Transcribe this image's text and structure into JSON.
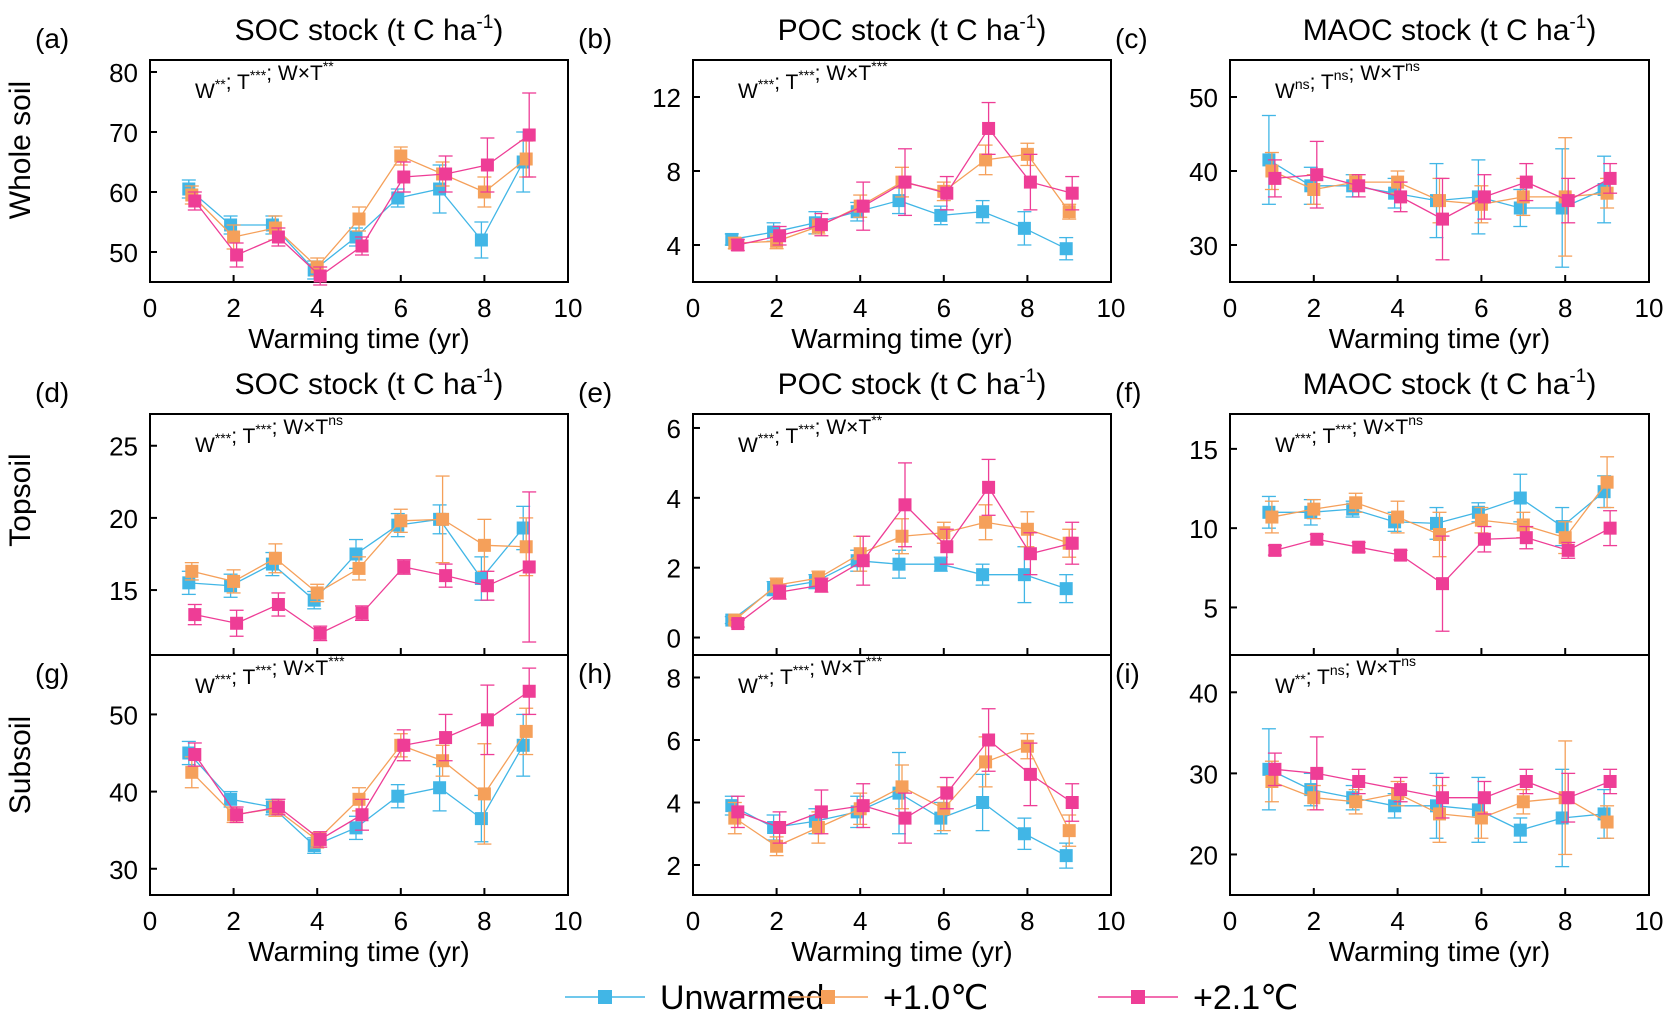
{
  "chart_data": {
    "type": "line",
    "xlabel": "Warming time (yr)",
    "xlim": [
      0,
      10
    ],
    "x_ticks": [
      0,
      2,
      4,
      6,
      8,
      10
    ],
    "x": [
      1,
      2,
      3,
      4,
      5,
      6,
      7,
      8,
      9
    ],
    "row_labels": [
      "Whole soil",
      "Topsoil",
      "Subsoil"
    ],
    "legend": {
      "placement": "bottom-center",
      "entries": [
        {
          "name": "Unwarmed",
          "color": "#41b6e6"
        },
        {
          "name": "+1.0℃",
          "color": "#f5a05a"
        },
        {
          "name": "+2.1℃",
          "color": "#ee3d96"
        }
      ]
    },
    "titles": {
      "soc": "SOC stock (t C ha",
      "poc": "POC stock (t C ha",
      "maoc": "MAOC stock (t C ha",
      "sup": "-1",
      "close": ")"
    },
    "panels": [
      {
        "tag": "(a)",
        "title_key": "soc",
        "ylim": [
          45,
          82
        ],
        "yticks": [
          50,
          60,
          70,
          80
        ],
        "stats": [
          [
            "W",
            "**"
          ],
          [
            "T",
            "***"
          ],
          [
            "W×T",
            "**"
          ]
        ],
        "series": [
          {
            "name": "Unwarmed",
            "values": [
              60.5,
              54.5,
              54.5,
              47.0,
              52.5,
              59.0,
              60.5,
              52.0,
              65.0
            ],
            "err": [
              1.5,
              1.5,
              1.5,
              1.5,
              1.5,
              1.5,
              4.0,
              3.0,
              5.0
            ]
          },
          {
            "name": "+1.0℃",
            "values": [
              59.5,
              52.5,
              54.0,
              47.5,
              55.5,
              66.0,
              63.0,
              60.0,
              65.5
            ],
            "err": [
              1.5,
              2.0,
              2.0,
              1.5,
              2.0,
              1.5,
              2.0,
              2.5,
              3.0
            ]
          },
          {
            "name": "+2.1℃",
            "values": [
              58.5,
              49.5,
              52.5,
              46.0,
              51.0,
              62.5,
              63.0,
              64.5,
              69.5
            ],
            "err": [
              1.5,
              2.0,
              1.5,
              1.5,
              1.5,
              2.5,
              3.0,
              4.5,
              7.0
            ]
          }
        ]
      },
      {
        "tag": "(b)",
        "title_key": "poc",
        "ylim": [
          2,
          14
        ],
        "yticks": [
          4,
          8,
          12
        ],
        "stats": [
          [
            "W",
            "***"
          ],
          [
            "T",
            "***"
          ],
          [
            "W×T",
            "***"
          ]
        ],
        "series": [
          {
            "name": "Unwarmed",
            "values": [
              4.3,
              4.7,
              5.2,
              5.8,
              6.4,
              5.6,
              5.8,
              4.9,
              3.8
            ],
            "err": [
              0.3,
              0.5,
              0.6,
              0.5,
              0.7,
              0.5,
              0.6,
              0.9,
              0.6
            ]
          },
          {
            "name": "+1.0℃",
            "values": [
              4.1,
              4.2,
              5.0,
              6.1,
              7.4,
              6.9,
              8.6,
              8.9,
              5.8
            ],
            "err": [
              0.3,
              0.4,
              0.4,
              0.6,
              0.8,
              0.5,
              0.8,
              0.6,
              0.4
            ]
          },
          {
            "name": "+2.1℃",
            "values": [
              4.0,
              4.5,
              5.1,
              6.1,
              7.4,
              6.8,
              10.3,
              7.4,
              6.8
            ],
            "err": [
              0.3,
              0.5,
              0.6,
              1.3,
              1.8,
              0.9,
              1.4,
              1.5,
              0.9
            ]
          }
        ]
      },
      {
        "tag": "(c)",
        "title_key": "maoc",
        "ylim": [
          25,
          55
        ],
        "yticks": [
          30,
          40,
          50
        ],
        "stats": [
          [
            "W",
            "ns"
          ],
          [
            "T",
            "ns"
          ],
          [
            "W×T",
            "ns"
          ]
        ],
        "series": [
          {
            "name": "Unwarmed",
            "values": [
              41.5,
              38.0,
              38.0,
              37.0,
              36.0,
              36.5,
              35.0,
              35.0,
              37.5
            ],
            "err": [
              6.0,
              2.5,
              1.5,
              2.0,
              5.0,
              5.0,
              2.5,
              8.0,
              4.5
            ]
          },
          {
            "name": "+1.0℃",
            "values": [
              40.0,
              37.5,
              38.5,
              38.5,
              36.0,
              35.5,
              36.5,
              36.5,
              37.0
            ],
            "err": [
              2.5,
              2.0,
              1.0,
              1.5,
              3.0,
              2.5,
              2.5,
              8.0,
              2.0
            ]
          },
          {
            "name": "+2.1℃",
            "values": [
              39.0,
              39.5,
              38.0,
              36.5,
              33.5,
              36.5,
              38.5,
              36.0,
              39.0
            ],
            "err": [
              2.5,
              4.5,
              1.5,
              2.0,
              5.5,
              3.0,
              2.5,
              3.0,
              2.0
            ]
          }
        ]
      },
      {
        "tag": "(d)",
        "title_key": "soc",
        "ylim": [
          10.5,
          27.2
        ],
        "yticks": [
          15,
          20,
          25
        ],
        "stats": [
          [
            "W",
            "***"
          ],
          [
            "T",
            "***"
          ],
          [
            "W×T",
            "ns"
          ]
        ],
        "series": [
          {
            "name": "Unwarmed",
            "values": [
              15.5,
              15.3,
              16.8,
              14.3,
              17.5,
              19.5,
              19.9,
              15.8,
              19.3
            ],
            "err": [
              0.8,
              0.8,
              0.8,
              0.6,
              1.0,
              0.8,
              1.0,
              1.5,
              1.5
            ]
          },
          {
            "name": "+1.0℃",
            "values": [
              16.3,
              15.6,
              17.2,
              14.8,
              16.5,
              19.8,
              19.9,
              18.1,
              18.0
            ],
            "err": [
              0.6,
              0.8,
              1.0,
              0.6,
              0.8,
              0.8,
              3.0,
              1.8,
              2.0
            ]
          },
          {
            "name": "+2.1℃",
            "values": [
              13.3,
              12.7,
              14.0,
              12.0,
              13.4,
              16.6,
              16.0,
              15.3,
              16.6
            ],
            "err": [
              0.7,
              0.9,
              0.8,
              0.5,
              0.5,
              0.5,
              0.8,
              1.0,
              5.2
            ]
          }
        ]
      },
      {
        "tag": "(e)",
        "title_key": "poc",
        "ylim": [
          -0.5,
          6.4
        ],
        "yticks": [
          0,
          2,
          4,
          6
        ],
        "stats": [
          [
            "W",
            "***"
          ],
          [
            "T",
            "***"
          ],
          [
            "W×T",
            "**"
          ]
        ],
        "series": [
          {
            "name": "Unwarmed",
            "values": [
              0.5,
              1.4,
              1.6,
              2.2,
              2.1,
              2.1,
              1.8,
              1.8,
              1.4
            ],
            "err": [
              0.1,
              0.2,
              0.2,
              0.3,
              0.4,
              0.2,
              0.3,
              0.8,
              0.4
            ]
          },
          {
            "name": "+1.0℃",
            "values": [
              0.5,
              1.5,
              1.7,
              2.4,
              2.9,
              3.0,
              3.3,
              3.1,
              2.7
            ],
            "err": [
              0.1,
              0.2,
              0.2,
              0.5,
              0.5,
              0.3,
              0.5,
              0.5,
              0.4
            ]
          },
          {
            "name": "+2.1℃",
            "values": [
              0.4,
              1.3,
              1.5,
              2.2,
              3.8,
              2.6,
              4.3,
              2.4,
              2.7
            ],
            "err": [
              0.1,
              0.2,
              0.2,
              0.7,
              1.2,
              0.5,
              0.8,
              0.6,
              0.6
            ]
          }
        ]
      },
      {
        "tag": "(f)",
        "title_key": "maoc",
        "ylim": [
          2,
          17.2
        ],
        "yticks": [
          5,
          10,
          15
        ],
        "stats": [
          [
            "W",
            "***"
          ],
          [
            "T",
            "***"
          ],
          [
            "W×T",
            "ns"
          ]
        ],
        "series": [
          {
            "name": "Unwarmed",
            "values": [
              11.0,
              11.0,
              11.2,
              10.4,
              10.3,
              11.0,
              11.9,
              10.1,
              12.3
            ],
            "err": [
              1.0,
              0.8,
              0.5,
              0.6,
              1.0,
              0.6,
              1.5,
              1.2,
              1.0
            ]
          },
          {
            "name": "+1.0℃",
            "values": [
              10.7,
              11.2,
              11.6,
              10.7,
              9.6,
              10.5,
              10.2,
              9.4,
              12.9
            ],
            "err": [
              1.0,
              0.6,
              0.6,
              1.0,
              1.4,
              0.8,
              0.8,
              1.0,
              1.6
            ]
          },
          {
            "name": "+2.1℃",
            "values": [
              8.6,
              9.3,
              8.8,
              8.3,
              6.5,
              9.3,
              9.4,
              8.6,
              10.0
            ],
            "err": [
              0.3,
              0.3,
              0.3,
              0.3,
              3.0,
              0.8,
              0.7,
              0.5,
              1.1
            ]
          }
        ]
      },
      {
        "tag": "(g)",
        "title_key": null,
        "ylim": [
          26.6,
          57.7
        ],
        "yticks": [
          30,
          40,
          50
        ],
        "stats": [
          [
            "W",
            "***"
          ],
          [
            "T",
            "***"
          ],
          [
            "W×T",
            "***"
          ]
        ],
        "series": [
          {
            "name": "Unwarmed",
            "values": [
              45.0,
              39.0,
              38.0,
              33.0,
              35.3,
              39.4,
              40.5,
              36.5,
              46.0
            ],
            "err": [
              1.5,
              1.0,
              1.0,
              1.0,
              1.5,
              1.5,
              3.0,
              3.0,
              4.0
            ]
          },
          {
            "name": "+1.0℃",
            "values": [
              42.5,
              37.0,
              37.8,
              33.7,
              39.0,
              46.0,
              44.0,
              39.7,
              47.8
            ],
            "err": [
              2.0,
              1.0,
              1.0,
              1.0,
              1.5,
              1.5,
              2.0,
              6.5,
              3.0
            ]
          },
          {
            "name": "+2.1℃",
            "values": [
              44.8,
              37.0,
              38.0,
              33.8,
              37.0,
              46.0,
              47.0,
              49.3,
              53.0
            ],
            "err": [
              1.5,
              1.0,
              1.0,
              1.0,
              2.0,
              2.0,
              3.0,
              4.5,
              3.0
            ]
          }
        ]
      },
      {
        "tag": "(h)",
        "title_key": null,
        "ylim": [
          1.04,
          8.72
        ],
        "yticks": [
          2,
          4,
          6,
          8
        ],
        "stats": [
          [
            "W",
            "**"
          ],
          [
            "T",
            "***"
          ],
          [
            "W×T",
            "***"
          ]
        ],
        "series": [
          {
            "name": "Unwarmed",
            "values": [
              3.9,
              3.2,
              3.4,
              3.7,
              4.3,
              3.5,
              4.0,
              3.0,
              2.3
            ],
            "err": [
              0.3,
              0.4,
              0.4,
              0.5,
              1.3,
              0.5,
              0.9,
              0.5,
              0.4
            ]
          },
          {
            "name": "+1.0℃",
            "values": [
              3.5,
              2.6,
              3.2,
              3.8,
              4.5,
              3.8,
              5.3,
              5.8,
              3.1
            ],
            "err": [
              0.5,
              0.3,
              0.5,
              0.5,
              0.7,
              0.7,
              0.8,
              0.4,
              0.5
            ]
          },
          {
            "name": "+2.1℃",
            "values": [
              3.7,
              3.2,
              3.7,
              3.9,
              3.5,
              4.3,
              6.0,
              4.9,
              4.0
            ],
            "err": [
              0.5,
              0.5,
              0.7,
              0.7,
              0.8,
              0.5,
              1.0,
              1.0,
              0.6
            ]
          }
        ]
      },
      {
        "tag": "(i)",
        "title_key": null,
        "ylim": [
          15,
          44.6
        ],
        "yticks": [
          20,
          30,
          40
        ],
        "stats": [
          [
            "W",
            "**"
          ],
          [
            "T",
            "ns"
          ],
          [
            "W×T",
            "ns"
          ]
        ],
        "series": [
          {
            "name": "Unwarmed",
            "values": [
              30.5,
              28.0,
              27.0,
              26.0,
              26.0,
              25.5,
              23.0,
              24.5,
              25.0
            ],
            "err": [
              5.0,
              2.0,
              1.5,
              1.5,
              4.0,
              4.0,
              1.5,
              6.0,
              3.0
            ]
          },
          {
            "name": "+1.0℃",
            "values": [
              29.0,
              27.0,
              26.5,
              27.5,
              25.0,
              24.5,
              26.5,
              27.0,
              24.0
            ],
            "err": [
              2.5,
              1.5,
              1.5,
              1.5,
              3.5,
              2.5,
              1.5,
              7.0,
              2.0
            ]
          },
          {
            "name": "+2.1℃",
            "values": [
              30.5,
              30.0,
              29.0,
              28.0,
              27.0,
              27.0,
              29.0,
              27.0,
              29.0
            ],
            "err": [
              2.0,
              4.5,
              1.5,
              1.5,
              2.5,
              2.0,
              1.5,
              3.0,
              1.5
            ]
          }
        ]
      }
    ]
  }
}
